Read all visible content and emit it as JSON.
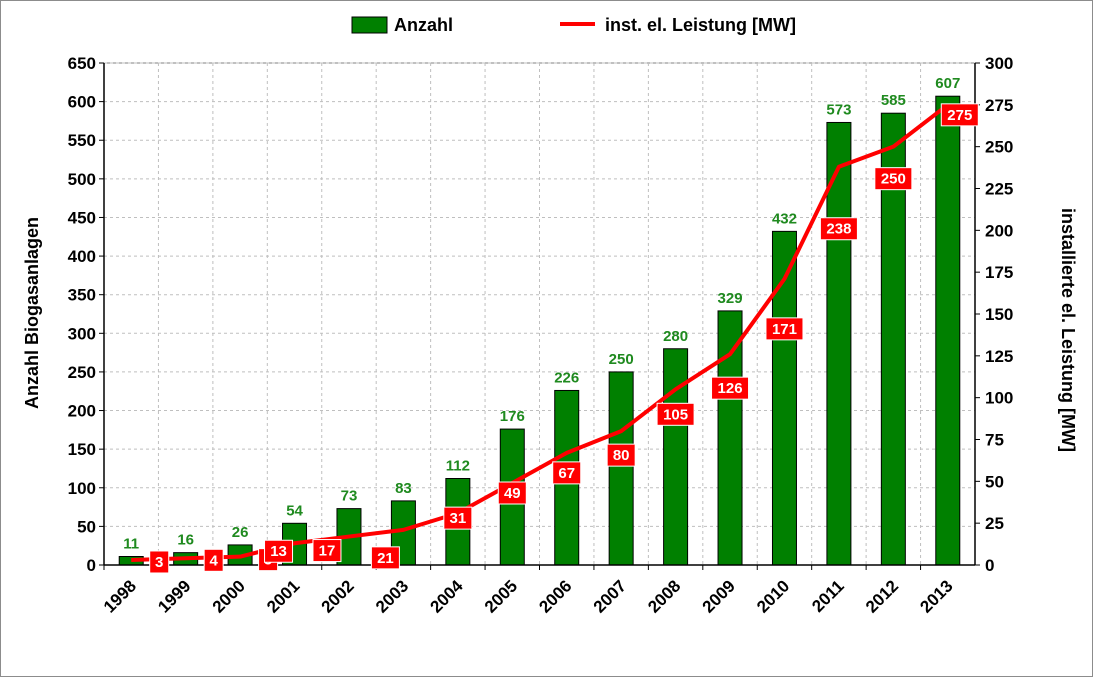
{
  "chart_data": {
    "type": "bar",
    "categories": [
      "1998",
      "1999",
      "2000",
      "2001",
      "2002",
      "2003",
      "2004",
      "2005",
      "2006",
      "2007",
      "2008",
      "2009",
      "2010",
      "2011",
      "2012",
      "2013"
    ],
    "series": [
      {
        "name": "Anzahl",
        "kind": "bar",
        "axis": "left",
        "color": "#008000",
        "values": [
          11,
          16,
          26,
          54,
          73,
          83,
          112,
          176,
          226,
          250,
          280,
          329,
          432,
          573,
          585,
          607
        ]
      },
      {
        "name": "inst. el. Leistung [MW]",
        "kind": "line",
        "axis": "right",
        "color": "#ff0000",
        "values": [
          3,
          4,
          5,
          13,
          17,
          21,
          31,
          49,
          67,
          80,
          105,
          126,
          171,
          238,
          250,
          275
        ]
      }
    ],
    "ylabel": "Anzahl Biogasanlagen",
    "y2label": "installierte el. Leistung [MW]",
    "ylim": [
      0,
      650
    ],
    "y2lim": [
      0,
      300
    ],
    "yticks": [
      "0",
      "50",
      "100",
      "150",
      "200",
      "250",
      "300",
      "350",
      "400",
      "450",
      "500",
      "550",
      "600",
      "650"
    ],
    "y2ticks": [
      "0",
      "25",
      "50",
      "75",
      "100",
      "125",
      "150",
      "175",
      "200",
      "225",
      "250",
      "275",
      "300"
    ],
    "grid": true,
    "legend_position": "top"
  }
}
